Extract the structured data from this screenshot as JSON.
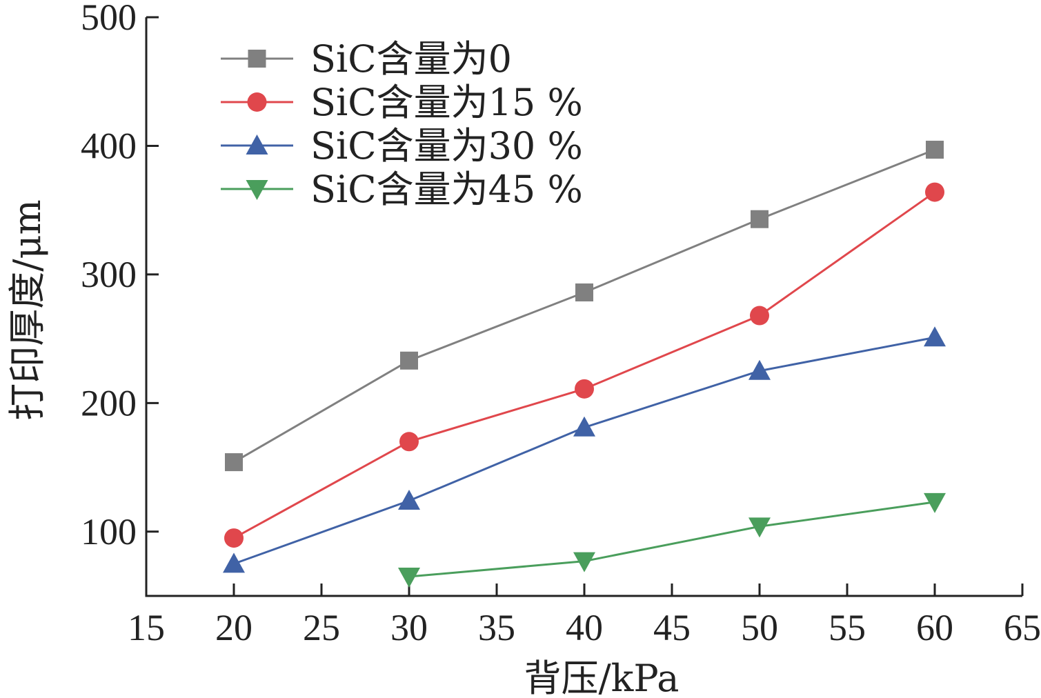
{
  "chart_data": {
    "type": "line",
    "title": "",
    "xlabel": "背压/kPa",
    "ylabel": "打印厚度/μm",
    "xlim": [
      15,
      65
    ],
    "ylim": [
      50,
      500
    ],
    "xticks": [
      15,
      20,
      25,
      30,
      35,
      40,
      45,
      50,
      55,
      60,
      65
    ],
    "yticks": [
      100,
      200,
      300,
      400,
      500
    ],
    "grid": false,
    "legend_position": "top-left",
    "series": [
      {
        "name": "SiC含量为0",
        "color": "#808080",
        "marker": "square",
        "x": [
          20,
          30,
          40,
          50,
          60
        ],
        "y": [
          154,
          233,
          286,
          343,
          397
        ]
      },
      {
        "name": "SiC含量为15 %",
        "color": "#e0474c",
        "marker": "circle",
        "x": [
          20,
          30,
          40,
          50,
          60
        ],
        "y": [
          95,
          170,
          211,
          268,
          364
        ]
      },
      {
        "name": "SiC含量为30 %",
        "color": "#4062a6",
        "marker": "triangle-up",
        "x": [
          20,
          30,
          40,
          50,
          60
        ],
        "y": [
          75,
          124,
          181,
          225,
          251
        ]
      },
      {
        "name": "SiC含量为45 %",
        "color": "#4a9e5c",
        "marker": "triangle-down",
        "x": [
          30,
          40,
          50,
          60
        ],
        "y": [
          65,
          77,
          104,
          123
        ]
      }
    ]
  }
}
